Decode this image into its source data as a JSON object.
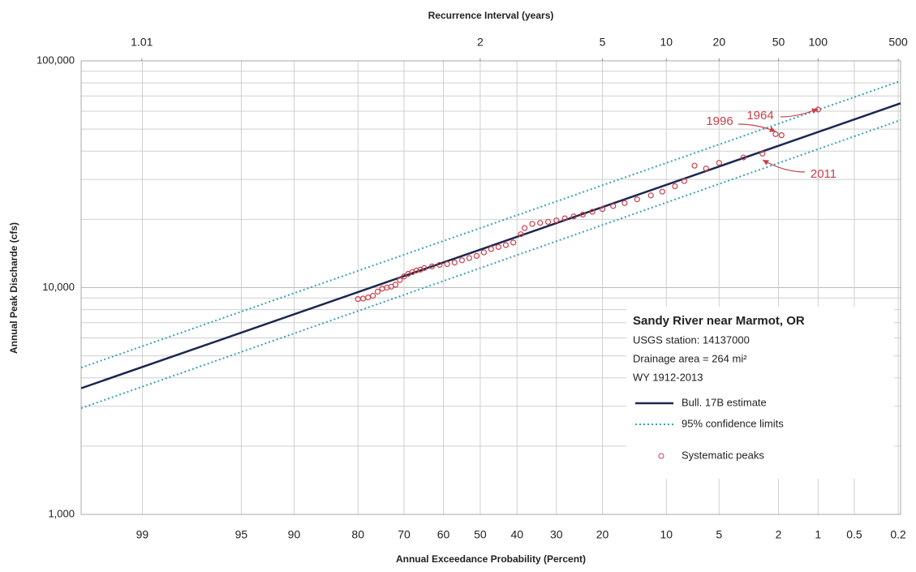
{
  "chart_data": {
    "type": "line",
    "xscale": "normal-probability",
    "yscale": "log",
    "grid": true,
    "x_label": "Annual Exceedance Probability  (Percent)",
    "x2_label": "Recurrence Interval (years)",
    "y_label": "Annual Peak Discharde (cfs)",
    "xlim": [
      99.7,
      0.19
    ],
    "xticks": [
      99,
      95,
      90,
      80,
      70,
      60,
      50,
      40,
      30,
      20,
      10,
      5,
      2,
      1,
      0.5,
      0.2
    ],
    "x2ticks": [
      1.01,
      2,
      5,
      10,
      20,
      50,
      100,
      500
    ],
    "ylim": [
      1000,
      100000
    ],
    "yticks": [
      {
        "value": 1000,
        "label": "1,000"
      },
      {
        "value": 10000,
        "label": "10,000"
      },
      {
        "value": 100000,
        "label": "100,000"
      }
    ],
    "yminorticks": [
      2000,
      3000,
      4000,
      5000,
      6000,
      7000,
      8000,
      9000,
      20000,
      30000,
      40000,
      50000,
      60000,
      70000,
      80000,
      90000
    ],
    "legend": {
      "title": "Sandy River near Marmot, OR",
      "lines": [
        "USGS station: 14137000",
        "Drainage area = 264 mi²",
        "WY 1912-2013"
      ],
      "position": "lower right"
    },
    "series": [
      {
        "name": "Bull. 17B estimate",
        "color": "#1c2750",
        "x": [
          99.7,
          50,
          0.19
        ],
        "values": [
          3600,
          14700,
          65000
        ]
      },
      {
        "name": "95% confidence limits",
        "color": "#3aa0b8",
        "x": [
          99.7,
          50,
          0.19
        ],
        "upper": [
          4440,
          18300,
          81500
        ],
        "lower": [
          2940,
          12200,
          54800
        ]
      },
      {
        "name": "Systematic peaks",
        "color": "#c8404a",
        "x": [
          80,
          79,
          78,
          77,
          76,
          75,
          74,
          73,
          72,
          71,
          70,
          69,
          68,
          67,
          66,
          65,
          63,
          61,
          59,
          57,
          55,
          53,
          51,
          49,
          47,
          45,
          43,
          41,
          39,
          38,
          36,
          34,
          32,
          30,
          28,
          26,
          24,
          22,
          20,
          18,
          16,
          14,
          12,
          10.5,
          9,
          8,
          7,
          6,
          5,
          3.5,
          2.6,
          2.1,
          1.9,
          1.0
        ],
        "values": [
          8900,
          8950,
          9050,
          9200,
          9600,
          9900,
          10000,
          10100,
          10300,
          10800,
          11200,
          11500,
          11700,
          11900,
          12000,
          12200,
          12400,
          12600,
          12700,
          12900,
          13200,
          13500,
          13800,
          14300,
          14800,
          15100,
          15400,
          15800,
          17200,
          18300,
          19100,
          19300,
          19500,
          19800,
          20200,
          20600,
          21000,
          21600,
          22200,
          22900,
          23600,
          24500,
          25500,
          26500,
          28000,
          29500,
          34500,
          33500,
          35500,
          37500,
          39000,
          47500,
          47000,
          61000
        ]
      }
    ],
    "annotations": [
      {
        "text": "1964"
      },
      {
        "text": "1996"
      },
      {
        "text": "2011"
      }
    ]
  }
}
